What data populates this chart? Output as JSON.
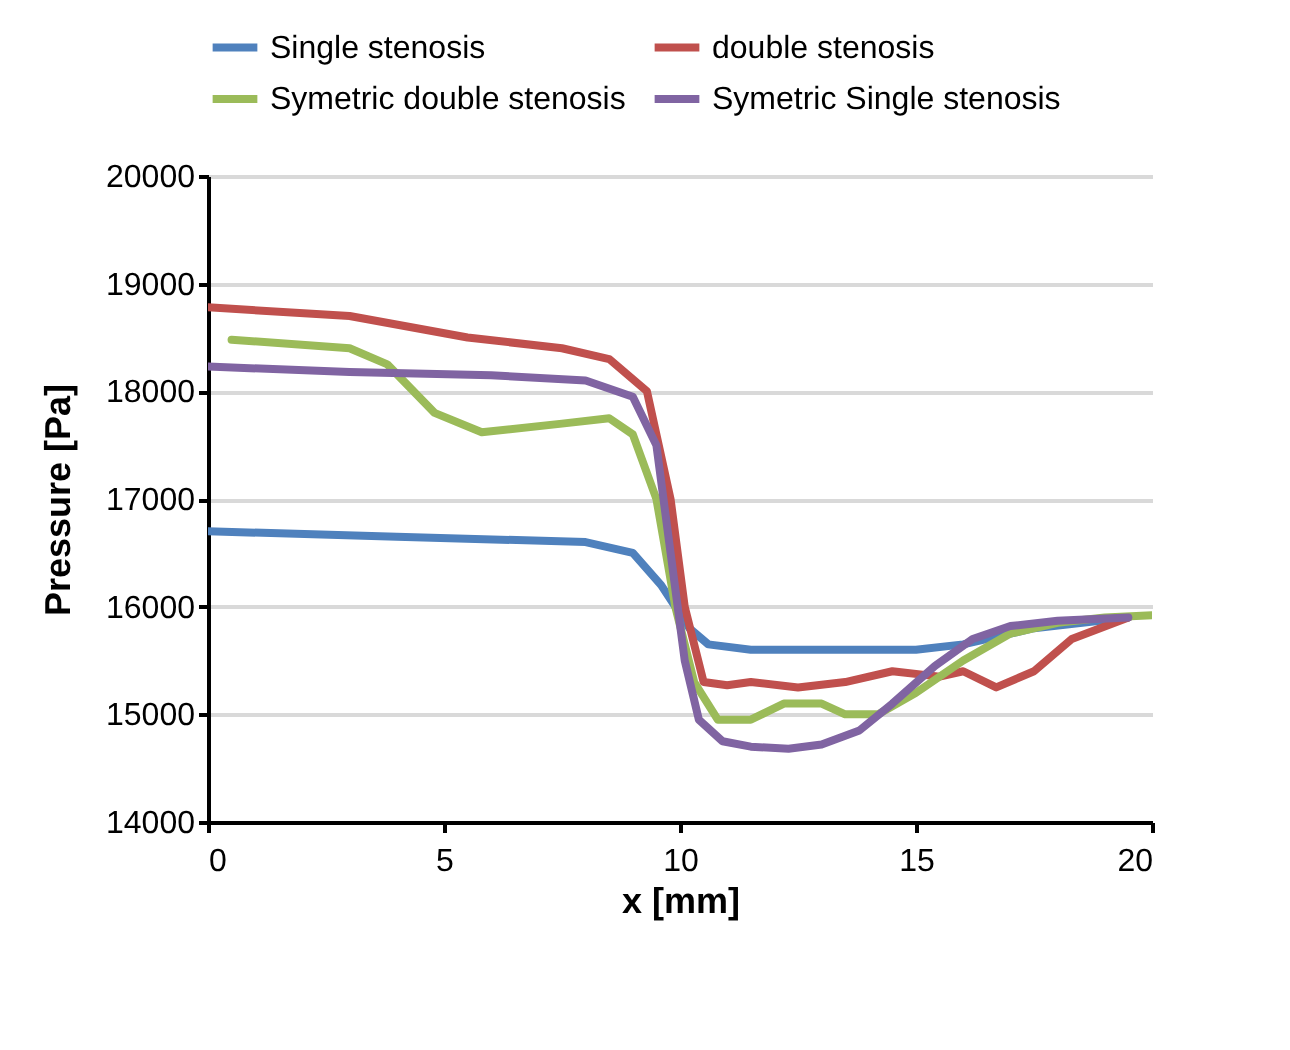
{
  "chart_data": {
    "type": "line",
    "xlabel": "x [mm]",
    "ylabel": "Pressure [Pa]",
    "xlim": [
      0,
      20
    ],
    "xticks": [
      0,
      5,
      10,
      15,
      20
    ],
    "ylim": [
      14000,
      20000
    ],
    "yticks": [
      14000,
      15000,
      16000,
      17000,
      18000,
      19000,
      20000
    ],
    "grid": "y",
    "legend": "top",
    "marker": "none",
    "line_style": "solid",
    "series": [
      {
        "name": "Single stenosis",
        "color": "#4f81bd",
        "x": [
          0,
          4,
          8,
          9,
          9.6,
          10.2,
          10.6,
          11.5,
          13,
          15,
          16,
          17.5,
          19.5
        ],
        "values": [
          16700,
          16650,
          16600,
          16500,
          16200,
          15800,
          15650,
          15600,
          15600,
          15600,
          15650,
          15800,
          15900
        ]
      },
      {
        "name": "double stenosis",
        "color": "#c0504d",
        "x": [
          0,
          3,
          5.5,
          7.5,
          8.5,
          9.3,
          9.8,
          10.1,
          10.5,
          11,
          11.5,
          12.5,
          13.5,
          14.5,
          15.5,
          16,
          16.7,
          17.5,
          18.3,
          19.5
        ],
        "values": [
          18780,
          18700,
          18500,
          18400,
          18300,
          18000,
          17000,
          16000,
          15300,
          15270,
          15300,
          15250,
          15300,
          15400,
          15350,
          15400,
          15250,
          15400,
          15700,
          15900
        ]
      },
      {
        "name": "Symetric double stenosis",
        "color": "#9bbb59",
        "x": [
          0.5,
          3,
          3.8,
          4.8,
          5.8,
          7.5,
          8.5,
          9,
          9.5,
          9.9,
          10.3,
          10.8,
          11.5,
          12.2,
          13,
          13.5,
          14.2,
          15,
          16,
          17,
          18,
          19,
          20
        ],
        "values": [
          18480,
          18400,
          18250,
          17800,
          17620,
          17700,
          17750,
          17600,
          17000,
          16000,
          15300,
          14950,
          14950,
          15100,
          15100,
          15000,
          15000,
          15200,
          15500,
          15750,
          15850,
          15900,
          15920
        ]
      },
      {
        "name": "Symetric Single stenosis",
        "color": "#8064a2",
        "x": [
          0,
          3,
          6,
          8,
          9,
          9.5,
          9.8,
          10.1,
          10.4,
          10.9,
          11.5,
          12.3,
          13,
          13.8,
          14.5,
          15.4,
          16.2,
          17,
          18,
          19.5
        ],
        "values": [
          18230,
          18180,
          18150,
          18100,
          17950,
          17500,
          16500,
          15500,
          14950,
          14750,
          14700,
          14680,
          14720,
          14850,
          15100,
          15450,
          15700,
          15820,
          15870,
          15900
        ]
      }
    ]
  }
}
